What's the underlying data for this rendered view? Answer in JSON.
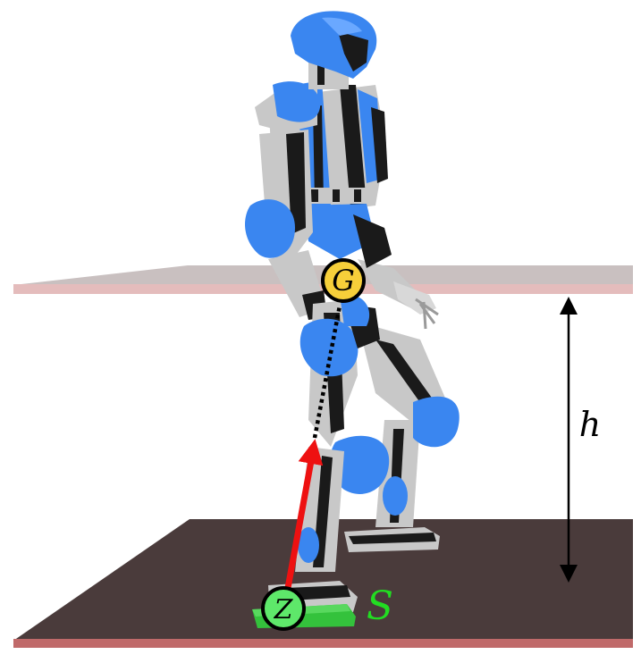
{
  "labels": {
    "com": "G",
    "zmp": "Z",
    "support": "S",
    "height": "h"
  },
  "colors": {
    "robot_blue": "#3a86f0",
    "robot_grey": "#c8c8c8",
    "robot_dark": "#1a1a1a",
    "ground": "#4a3b3b",
    "ground_edge": "#c06a6a",
    "com_plane": "#c9b8b8",
    "com_plane_edge": "#e0b8b8",
    "com_marker": "#f6cf3a",
    "zmp_marker": "#5ee86a",
    "support_polygon": "#34c23c",
    "arrow": "#ee1111",
    "support_label": "#22dd22"
  }
}
